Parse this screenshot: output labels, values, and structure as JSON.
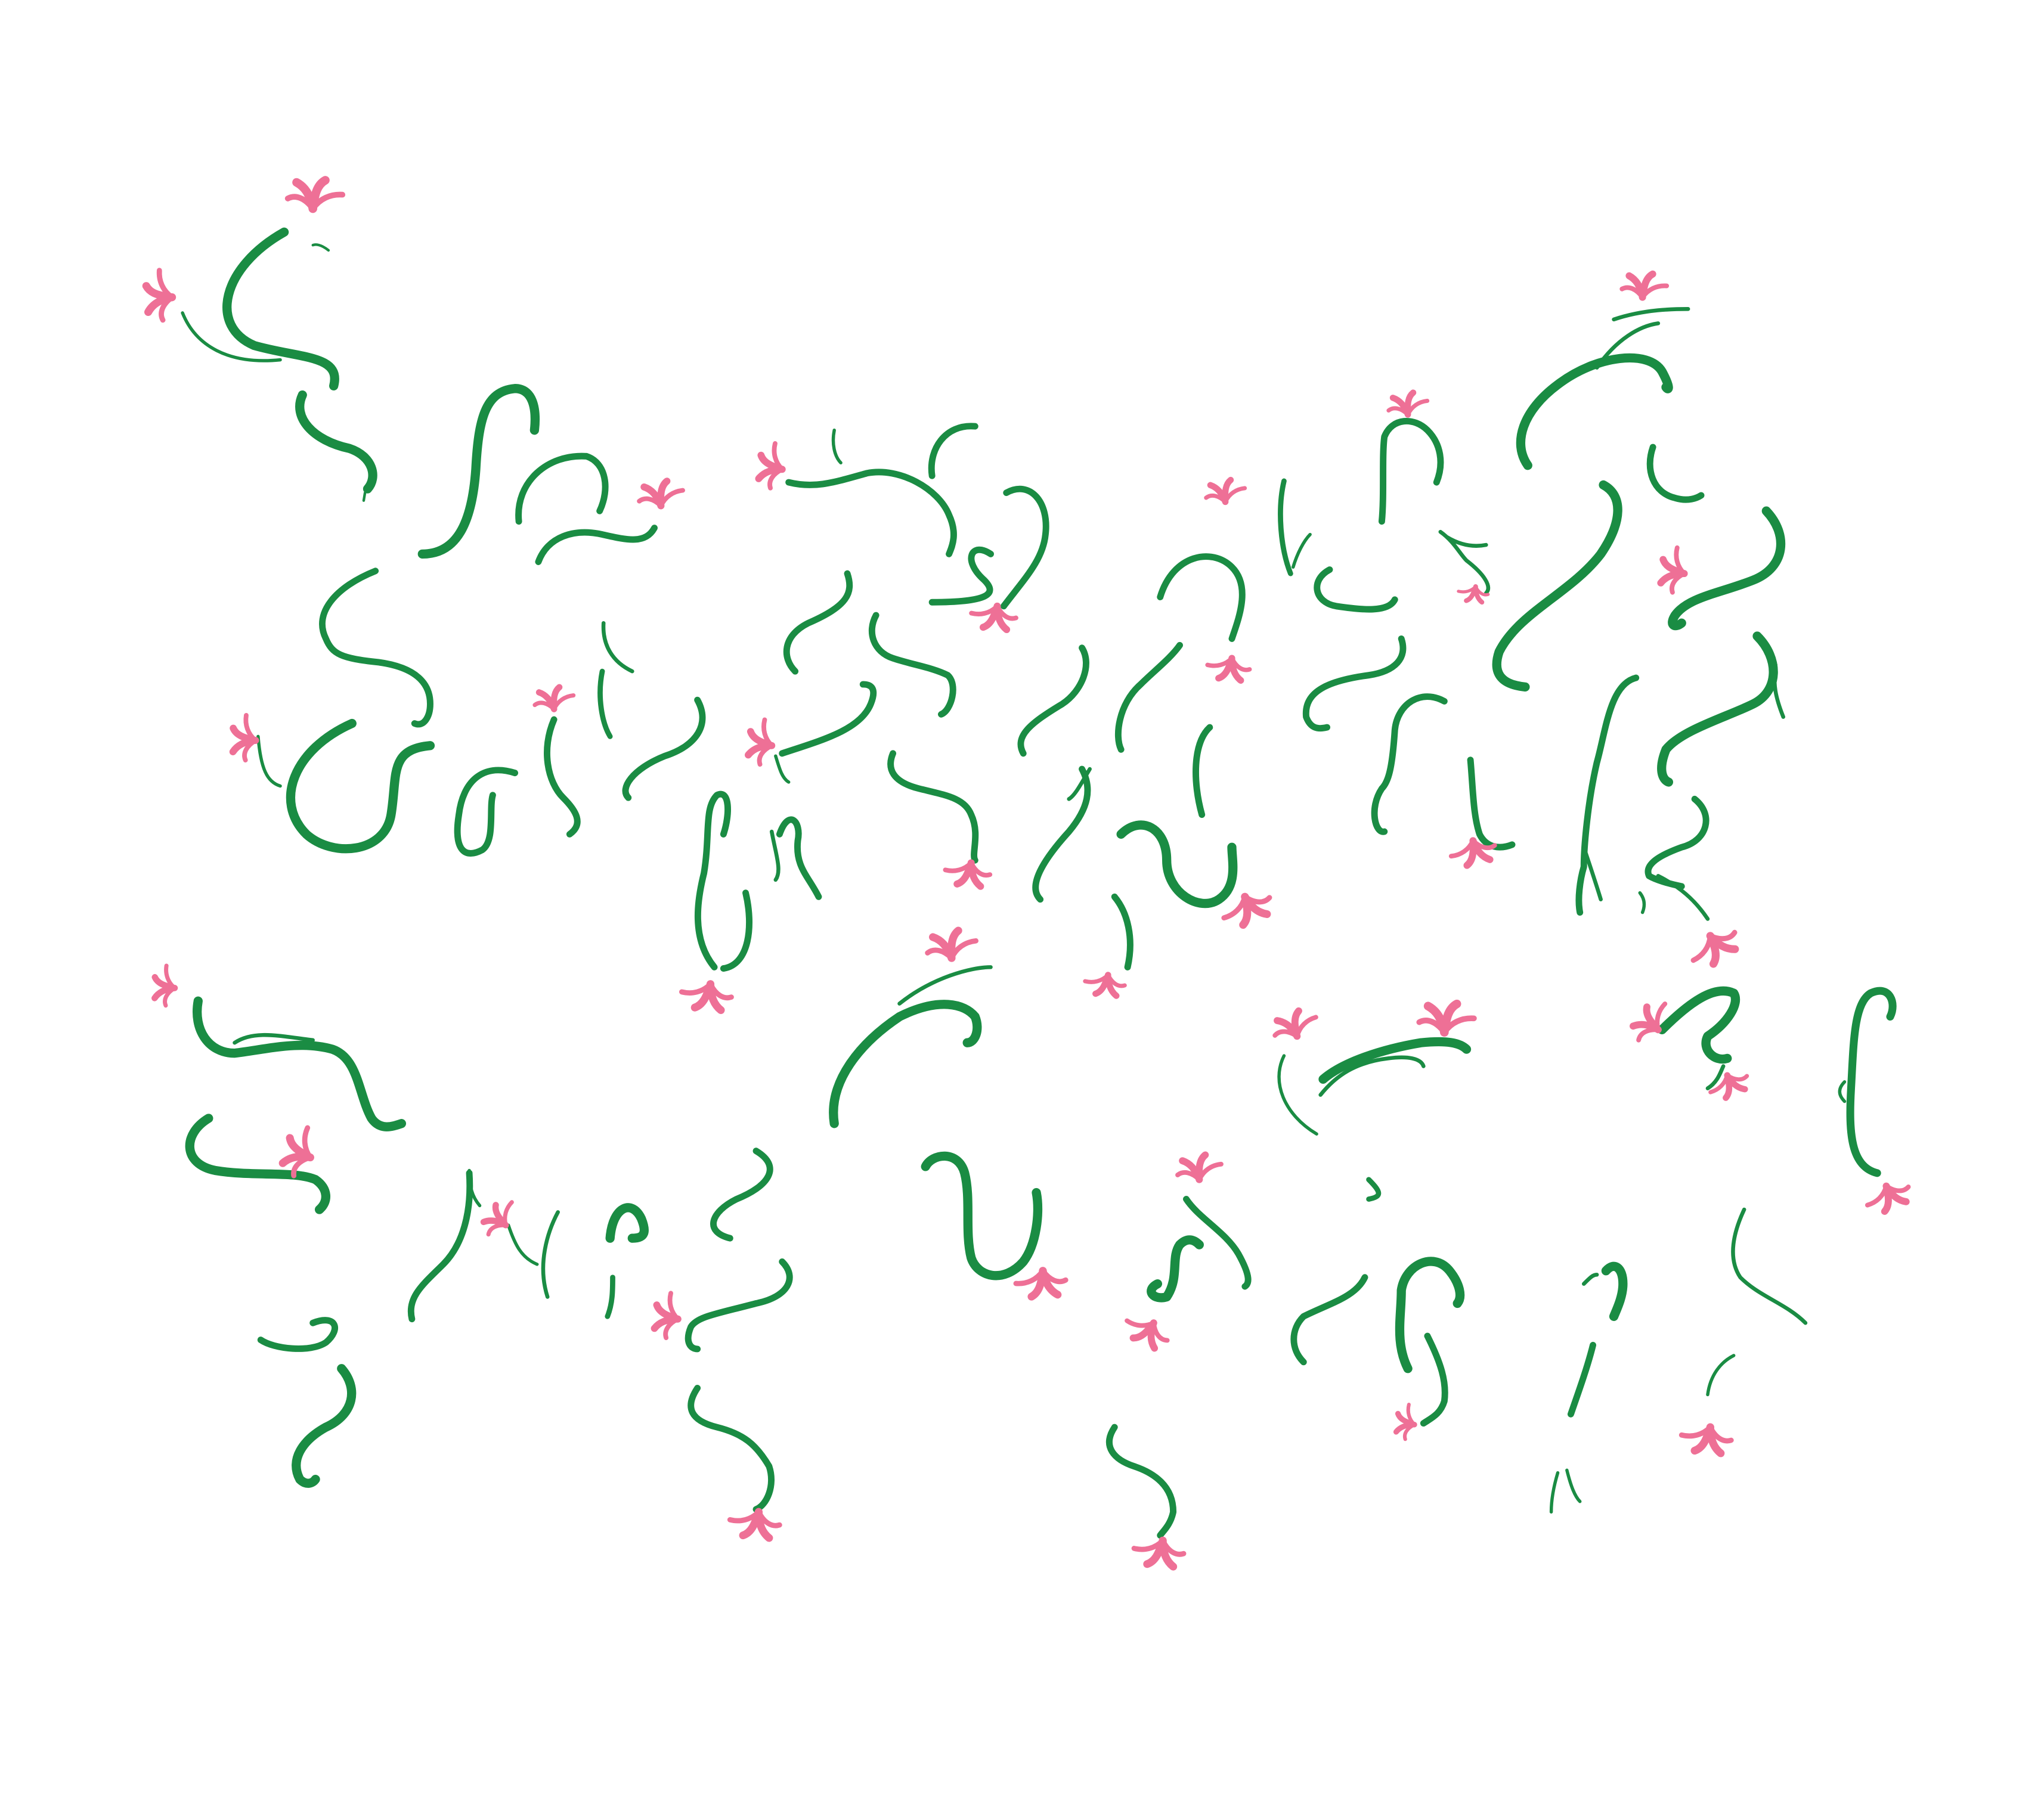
{
  "artwork": {
    "background_color": "#ffffff",
    "stem_color": "#1a8c43",
    "flower_color": "#ee7096",
    "motif": "vine-sprout-with-blossom"
  }
}
